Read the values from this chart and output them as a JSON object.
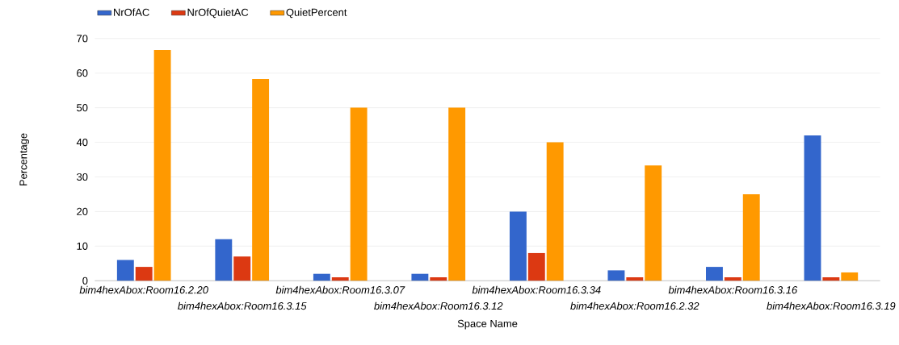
{
  "chart_data": {
    "type": "bar",
    "xlabel": "Space Name",
    "ylabel": "Percentage",
    "categories": [
      "bim4hexAbox:Room16.2.20",
      "bim4hexAbox:Room16.3.15",
      "bim4hexAbox:Room16.3.07",
      "bim4hexAbox:Room16.3.12",
      "bim4hexAbox:Room16.3.34",
      "bim4hexAbox:Room16.2.32",
      "bim4hexAbox:Room16.3.16",
      "bim4hexAbox:Room16.3.19"
    ],
    "series": [
      {
        "name": "NrOfAC",
        "color": "#3366cc",
        "values": [
          6,
          12,
          2,
          2,
          20,
          3,
          4,
          42
        ]
      },
      {
        "name": "NrOfQuietAC",
        "color": "#dc3912",
        "values": [
          4,
          7,
          1,
          1,
          8,
          1,
          1,
          1
        ]
      },
      {
        "name": "QuietPercent",
        "color": "#ff9900",
        "values": [
          66.7,
          58.3,
          50,
          50,
          40,
          33.3,
          25,
          2.4
        ]
      }
    ],
    "ylim": [
      0,
      70
    ],
    "yticks": [
      0,
      10,
      20,
      30,
      40,
      50,
      60,
      70
    ],
    "grid": "y",
    "legend": "top left"
  }
}
